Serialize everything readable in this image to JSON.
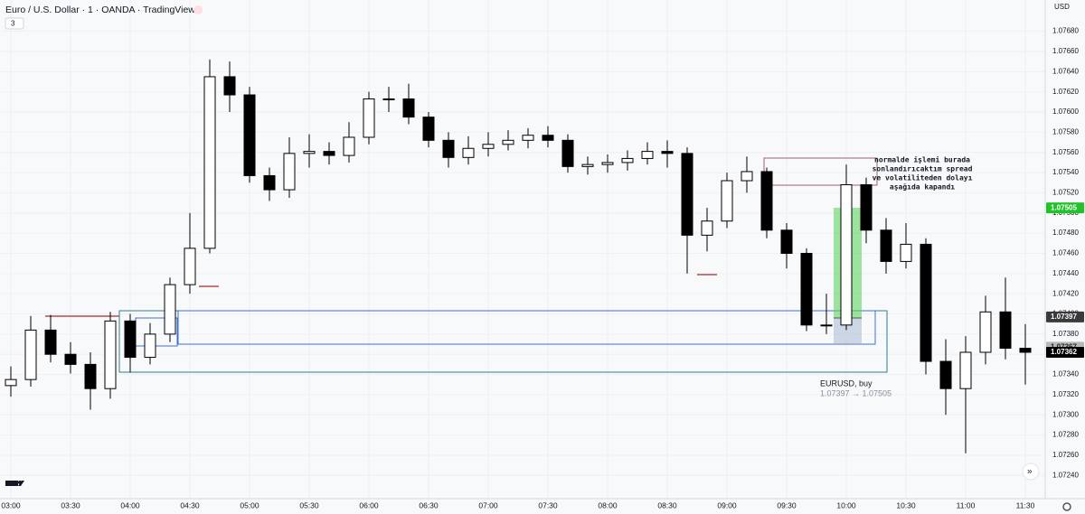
{
  "header": {
    "symbol": "Euro / U.S. Dollar · 1 · OANDA · TradingView",
    "indicator_count": "3",
    "currency": "USD"
  },
  "chart_data": {
    "type": "candlestick",
    "x": [
      180,
      190,
      200,
      210,
      220,
      230,
      240,
      250,
      260,
      270,
      280,
      290,
      300,
      310,
      320,
      330,
      340,
      350,
      360,
      370,
      380,
      390,
      400,
      410,
      420,
      430,
      440,
      450,
      460,
      470,
      480,
      490,
      500,
      510,
      520,
      530,
      540,
      550,
      560,
      570,
      580,
      590,
      600,
      610,
      620,
      630,
      640,
      650,
      660,
      670,
      680,
      690
    ],
    "open": [
      1.07329,
      1.07335,
      1.07384,
      1.0736,
      1.0735,
      1.07326,
      1.07393,
      1.07357,
      1.0738,
      1.07429,
      1.07465,
      1.07635,
      1.07617,
      1.07537,
      1.07523,
      1.07559,
      1.07561,
      1.07557,
      1.07575,
      1.07613,
      1.07613,
      1.07595,
      1.07572,
      1.07555,
      1.07564,
      1.07568,
      1.07572,
      1.07577,
      1.07572,
      1.07546,
      1.07548,
      1.0755,
      1.07554,
      1.07561,
      1.07559,
      1.07478,
      1.07492,
      1.07532,
      1.07541,
      1.07483,
      1.0746,
      1.07389,
      1.07389,
      1.07528,
      1.07483,
      1.07452,
      1.07469,
      1.07353,
      1.07326,
      1.07362,
      1.07402,
      1.07366
    ],
    "high": [
      1.07348,
      1.07398,
      1.07399,
      1.07372,
      1.07362,
      1.07402,
      1.074,
      1.07391,
      1.07436,
      1.075,
      1.07652,
      1.0765,
      1.07625,
      1.07545,
      1.07575,
      1.07578,
      1.0757,
      1.0759,
      1.0762,
      1.07625,
      1.07628,
      1.076,
      1.0758,
      1.07576,
      1.0758,
      1.07582,
      1.07584,
      1.07586,
      1.07578,
      1.07556,
      1.07558,
      1.07562,
      1.0757,
      1.07572,
      1.07565,
      1.07505,
      1.0754,
      1.07556,
      1.07545,
      1.0749,
      1.07465,
      1.0742,
      1.07548,
      1.07535,
      1.07495,
      1.0749,
      1.07475,
      1.07375,
      1.07378,
      1.07418,
      1.07436,
      1.0739
    ],
    "low": [
      1.07318,
      1.07328,
      1.07352,
      1.07341,
      1.07305,
      1.07316,
      1.07342,
      1.0735,
      1.07372,
      1.0742,
      1.0746,
      1.076,
      1.0753,
      1.07512,
      1.07515,
      1.07545,
      1.07548,
      1.0755,
      1.07568,
      1.076,
      1.07588,
      1.07565,
      1.07545,
      1.07548,
      1.07556,
      1.07562,
      1.07564,
      1.07565,
      1.0754,
      1.07538,
      1.0754,
      1.07542,
      1.07548,
      1.07545,
      1.0744,
      1.07462,
      1.07485,
      1.0752,
      1.07475,
      1.07445,
      1.07383,
      1.0738,
      1.07384,
      1.0747,
      1.0744,
      1.07445,
      1.0734,
      1.073,
      1.07262,
      1.0735,
      1.07355,
      1.0733
    ],
    "close": [
      1.07335,
      1.07384,
      1.0736,
      1.0735,
      1.07326,
      1.07393,
      1.07357,
      1.0738,
      1.07429,
      1.07465,
      1.07635,
      1.07617,
      1.07537,
      1.07523,
      1.07559,
      1.07561,
      1.07557,
      1.07575,
      1.07613,
      1.07613,
      1.07595,
      1.07572,
      1.07555,
      1.07564,
      1.07568,
      1.07572,
      1.07577,
      1.07572,
      1.07546,
      1.07548,
      1.0755,
      1.07554,
      1.07561,
      1.07559,
      1.07478,
      1.07492,
      1.07532,
      1.07541,
      1.07483,
      1.0746,
      1.07389,
      1.07389,
      1.07528,
      1.07483,
      1.07452,
      1.07469,
      1.07353,
      1.07326,
      1.07362,
      1.07402,
      1.07366,
      1.07362
    ],
    "up_color": "#ffffff",
    "down_color": "#000000",
    "xlim": [
      175,
      700
    ],
    "xticks": [
      {
        "value": 180,
        "label": "03:00"
      },
      {
        "value": 210,
        "label": "03:30"
      },
      {
        "value": 240,
        "label": "04:00"
      },
      {
        "value": 270,
        "label": "04:30"
      },
      {
        "value": 300,
        "label": "05:00"
      },
      {
        "value": 330,
        "label": "05:30"
      },
      {
        "value": 360,
        "label": "06:00"
      },
      {
        "value": 390,
        "label": "06:30"
      },
      {
        "value": 420,
        "label": "07:00"
      },
      {
        "value": 450,
        "label": "07:30"
      },
      {
        "value": 480,
        "label": "08:00"
      },
      {
        "value": 510,
        "label": "08:30"
      },
      {
        "value": 540,
        "label": "09:00"
      },
      {
        "value": 570,
        "label": "09:30"
      },
      {
        "value": 600,
        "label": "10:00"
      },
      {
        "value": 630,
        "label": "10:30"
      },
      {
        "value": 660,
        "label": "11:00"
      },
      {
        "value": 690,
        "label": "11:30"
      }
    ],
    "ylim": [
      1.07217,
      1.07711
    ],
    "yticks": [
      {
        "value": 1.0768,
        "label": "1.07680"
      },
      {
        "value": 1.0766,
        "label": "1.07660"
      },
      {
        "value": 1.0764,
        "label": "1.07640"
      },
      {
        "value": 1.0762,
        "label": "1.07620"
      },
      {
        "value": 1.076,
        "label": "1.07600"
      },
      {
        "value": 1.0758,
        "label": "1.07580"
      },
      {
        "value": 1.0756,
        "label": "1.07560"
      },
      {
        "value": 1.0754,
        "label": "1.07540"
      },
      {
        "value": 1.0752,
        "label": "1.07520"
      },
      {
        "value": 1.075,
        "label": "1.07500"
      },
      {
        "value": 1.0748,
        "label": "1.07480"
      },
      {
        "value": 1.0746,
        "label": "1.07460"
      },
      {
        "value": 1.0744,
        "label": "1.07440"
      },
      {
        "value": 1.0742,
        "label": "1.07420"
      },
      {
        "value": 1.074,
        "label": "1.07400"
      },
      {
        "value": 1.0738,
        "label": "1.07380"
      },
      {
        "value": 1.0736,
        "label": "1.07360"
      },
      {
        "value": 1.0734,
        "label": "1.07340"
      },
      {
        "value": 1.0732,
        "label": "1.07320"
      },
      {
        "value": 1.073,
        "label": "1.07300"
      },
      {
        "value": 1.0728,
        "label": "1.07280"
      },
      {
        "value": 1.0726,
        "label": "1.07260"
      },
      {
        "value": 1.0724,
        "label": "1.07240"
      }
    ],
    "price_tags": [
      {
        "value": 1.07505,
        "color": "#22c32a",
        "text_color": "#ffffff"
      },
      {
        "value": 1.07397,
        "color": "#3a3a3a",
        "text_color": "#ffffff"
      },
      {
        "value": 1.07367,
        "color": "#b8b8b8",
        "text_color": "#222222"
      },
      {
        "value": 1.07362,
        "color": "#000000",
        "text_color": "#ffffff"
      }
    ],
    "position": {
      "name": "EURUSD, buy",
      "range": "1.07397 → 1.07505"
    },
    "annotation": [
      "normalde işlemi burada",
      "sonlandırıcaktım spread",
      "ve volatiliteden dolayı",
      "aşağıda kapandı"
    ]
  }
}
